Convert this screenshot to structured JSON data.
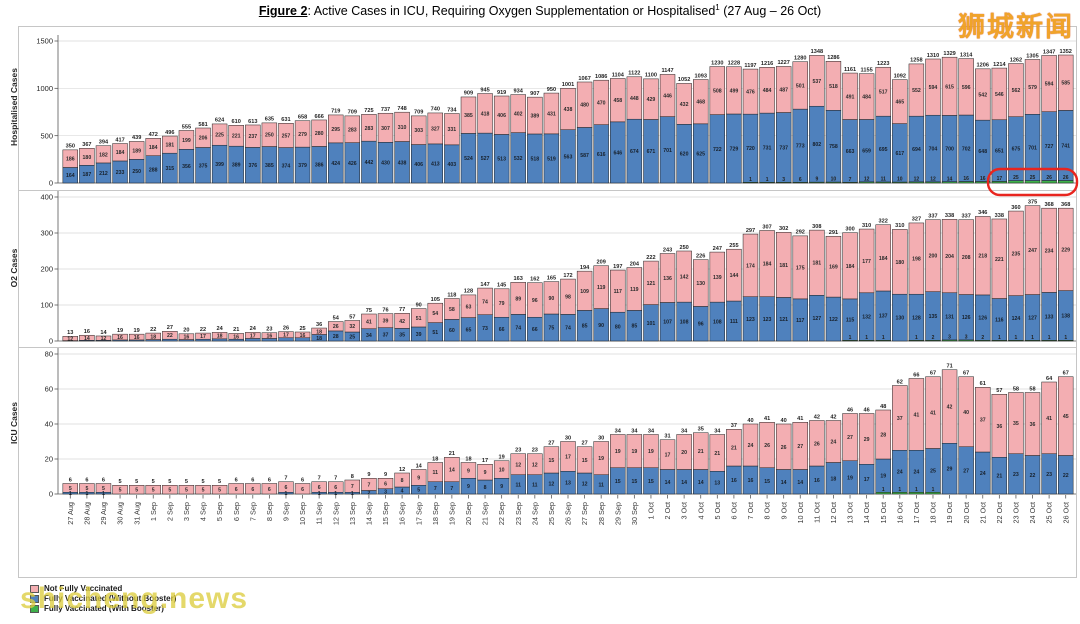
{
  "title": {
    "figure_label": "Figure 2",
    "rest": ": Active Cases in ICU, Requiring Oxygen Supplementation or Hospitalised",
    "footnote_marker": "1",
    "date_range": " (27 Aug – 26 Oct)"
  },
  "watermarks": {
    "top_right": "狮城新闻",
    "bottom_left": "shicheng.news"
  },
  "colors": {
    "not_fully_vaccinated": "#f3aeb2",
    "fully_vaccinated_without_booster": "#4f81bd",
    "fully_vaccinated_with_booster": "#3fb04a",
    "bar_border": "#1f1f1f",
    "gridline": "#d9d9d9",
    "axis": "#595959",
    "annotation_red": "#e8251f"
  },
  "legend": {
    "items": [
      {
        "label": "Not Fully Vaccinated",
        "color_key": "not_fully_vaccinated"
      },
      {
        "label": "Fully Vaccinated (Without Booster)",
        "color_key": "fully_vaccinated_without_booster"
      },
      {
        "label": "Fully Vaccinated (With Booster)",
        "color_key": "fully_vaccinated_with_booster"
      }
    ]
  },
  "annotation": {
    "shape": "red-rounded-oval",
    "circled_values": [
      17,
      25,
      25,
      26,
      26
    ],
    "meaning": "last five Fully Vaccinated (With Booster) hospitalised counts"
  },
  "dates": [
    "27 Aug",
    "28 Aug",
    "29 Aug",
    "30 Aug",
    "31 Aug",
    "1 Sep",
    "2 Sep",
    "3 Sep",
    "4 Sep",
    "5 Sep",
    "6 Sep",
    "7 Sep",
    "8 Sep",
    "9 Sep",
    "10 Sep",
    "11 Sep",
    "12 Sep",
    "13 Sep",
    "14 Sep",
    "15 Sep",
    "16 Sep",
    "17 Sep",
    "18 Sep",
    "19 Sep",
    "20 Sep",
    "21 Sep",
    "22 Sep",
    "23 Sep",
    "24 Sep",
    "25 Sep",
    "26 Sep",
    "27 Sep",
    "28 Sep",
    "29 Sep",
    "30 Sep",
    "1 Oct",
    "2 Oct",
    "3 Oct",
    "4 Oct",
    "5 Oct",
    "6 Oct",
    "7 Oct",
    "8 Oct",
    "9 Oct",
    "10 Oct",
    "11 Oct",
    "12 Oct",
    "13 Oct",
    "14 Oct",
    "15 Oct",
    "16 Oct",
    "17 Oct",
    "18 Oct",
    "19 Oct",
    "20 Oct",
    "21 Oct",
    "22 Oct",
    "23 Oct",
    "24 Oct",
    "25 Oct",
    "26 Oct"
  ],
  "chart_data": [
    {
      "type": "bar",
      "stacked": true,
      "axis_label": "Hospitalised Cases",
      "ylim": [
        0,
        1500
      ],
      "yticks": [
        0,
        500,
        1000,
        1500
      ],
      "totals": [
        350,
        367,
        394,
        417,
        439,
        472,
        496,
        555,
        581,
        624,
        610,
        613,
        635,
        631,
        658,
        666,
        719,
        709,
        725,
        737,
        748,
        709,
        740,
        734,
        909,
        945,
        919,
        934,
        907,
        950,
        1001,
        1067,
        1086,
        1104,
        1122,
        1100,
        1147,
        1052,
        1093,
        1230,
        1228,
        1197,
        1216,
        1227,
        1280,
        1348,
        1286,
        1161,
        1155,
        1223,
        1092,
        1258,
        1310,
        1329,
        1314,
        1206,
        1214,
        1262,
        1305,
        1347,
        1352
      ],
      "series": [
        {
          "name": "Fully Vaccinated (With Booster)",
          "key": "fully_vaccinated_with_booster",
          "values": [
            0,
            0,
            0,
            0,
            0,
            0,
            0,
            0,
            0,
            0,
            0,
            0,
            0,
            0,
            0,
            0,
            0,
            0,
            0,
            0,
            0,
            0,
            0,
            0,
            0,
            0,
            0,
            0,
            0,
            0,
            0,
            0,
            0,
            0,
            0,
            0,
            0,
            0,
            0,
            0,
            0,
            1,
            1,
            3,
            6,
            9,
            10,
            7,
            12,
            11,
            10,
            12,
            12,
            14,
            16,
            16,
            17,
            25,
            25,
            26,
            26
          ]
        },
        {
          "name": "Fully Vaccinated (Without Booster)",
          "key": "fully_vaccinated_without_booster",
          "values": [
            164,
            187,
            212,
            233,
            250,
            288,
            315,
            356,
            375,
            399,
            389,
            376,
            385,
            374,
            379,
            386,
            424,
            426,
            442,
            430,
            438,
            406,
            413,
            403,
            524,
            527,
            513,
            532,
            518,
            519,
            563,
            587,
            616,
            646,
            674,
            671,
            701,
            620,
            625,
            722,
            729,
            720,
            731,
            737,
            773,
            802,
            758,
            663,
            659,
            695,
            617,
            694,
            704,
            700,
            702,
            648,
            651,
            675,
            701,
            727,
            741
          ]
        },
        {
          "name": "Not Fully Vaccinated",
          "key": "not_fully_vaccinated",
          "values": [
            186,
            180,
            182,
            184,
            189,
            184,
            181,
            199,
            206,
            225,
            221,
            237,
            250,
            257,
            279,
            280,
            295,
            283,
            283,
            307,
            310,
            303,
            327,
            331,
            385,
            418,
            406,
            402,
            389,
            431,
            438,
            480,
            470,
            458,
            448,
            429,
            446,
            432,
            468,
            508,
            499,
            476,
            484,
            487,
            501,
            537,
            518,
            491,
            484,
            517,
            465,
            552,
            594,
            615,
            596,
            542,
            546,
            562,
            579,
            594,
            585
          ]
        }
      ]
    },
    {
      "type": "bar",
      "stacked": true,
      "axis_label": "O2 Cases",
      "ylim": [
        0,
        400
      ],
      "yticks": [
        0,
        100,
        200,
        300,
        400
      ],
      "totals": [
        13,
        16,
        14,
        19,
        19,
        22,
        27,
        20,
        22,
        24,
        21,
        24,
        23,
        26,
        25,
        36,
        54,
        57,
        75,
        76,
        77,
        90,
        105,
        118,
        128,
        147,
        145,
        163,
        162,
        165,
        172,
        194,
        209,
        197,
        204,
        222,
        243,
        250,
        226,
        247,
        255,
        297,
        307,
        302,
        292,
        308,
        291,
        300,
        310,
        322,
        310,
        327,
        337,
        338,
        337,
        346,
        338,
        360,
        375,
        368,
        368
      ],
      "series": [
        {
          "name": "Fully Vaccinated (With Booster)",
          "key": "fully_vaccinated_with_booster",
          "values": [
            0,
            0,
            0,
            0,
            0,
            0,
            0,
            0,
            0,
            0,
            0,
            0,
            0,
            0,
            0,
            0,
            0,
            0,
            0,
            0,
            0,
            0,
            0,
            0,
            0,
            0,
            0,
            0,
            0,
            0,
            0,
            0,
            0,
            0,
            0,
            0,
            0,
            0,
            0,
            0,
            0,
            0,
            0,
            0,
            0,
            0,
            0,
            1,
            1,
            1,
            0,
            1,
            2,
            3,
            3,
            2,
            1,
            1,
            1,
            1,
            1
          ]
        },
        {
          "name": "Fully Vaccinated (Without Booster)",
          "key": "fully_vaccinated_without_booster",
          "values": [
            1,
            2,
            2,
            3,
            3,
            4,
            5,
            4,
            5,
            6,
            5,
            7,
            7,
            9,
            9,
            18,
            28,
            25,
            34,
            37,
            35,
            39,
            51,
            60,
            65,
            73,
            66,
            74,
            66,
            75,
            74,
            85,
            90,
            80,
            85,
            101,
            107,
            108,
            96,
            108,
            111,
            123,
            123,
            121,
            117,
            127,
            122,
            115,
            132,
            137,
            130,
            128,
            135,
            131,
            126,
            126,
            116,
            124,
            127,
            133,
            138
          ]
        },
        {
          "name": "Not Fully Vaccinated",
          "key": "not_fully_vaccinated",
          "values": [
            12,
            14,
            12,
            16,
            16,
            18,
            22,
            16,
            17,
            18,
            16,
            17,
            16,
            17,
            16,
            18,
            26,
            32,
            41,
            39,
            42,
            51,
            54,
            58,
            63,
            74,
            79,
            89,
            96,
            90,
            98,
            109,
            119,
            117,
            119,
            121,
            136,
            142,
            130,
            139,
            144,
            174,
            184,
            181,
            175,
            181,
            169,
            184,
            177,
            184,
            180,
            198,
            200,
            204,
            208,
            218,
            221,
            235,
            247,
            234,
            229
          ]
        }
      ]
    },
    {
      "type": "bar",
      "stacked": true,
      "axis_label": "ICU Cases",
      "ylim": [
        0,
        80
      ],
      "yticks": [
        0,
        20,
        40,
        60,
        80
      ],
      "totals": [
        6,
        6,
        6,
        5,
        5,
        5,
        5,
        5,
        5,
        5,
        6,
        6,
        6,
        7,
        6,
        7,
        7,
        8,
        9,
        9,
        12,
        14,
        18,
        21,
        18,
        17,
        19,
        23,
        23,
        27,
        30,
        27,
        30,
        34,
        34,
        34,
        31,
        34,
        35,
        34,
        37,
        40,
        41,
        40,
        41,
        42,
        42,
        46,
        46,
        48,
        62,
        66,
        67,
        71,
        67,
        61,
        57,
        58,
        58,
        64,
        67
      ],
      "series": [
        {
          "name": "Fully Vaccinated (With Booster)",
          "key": "fully_vaccinated_with_booster",
          "values": [
            0,
            0,
            0,
            0,
            0,
            0,
            0,
            0,
            0,
            0,
            0,
            0,
            0,
            0,
            0,
            0,
            0,
            0,
            0,
            0,
            0,
            0,
            0,
            0,
            0,
            0,
            0,
            0,
            0,
            0,
            0,
            0,
            0,
            0,
            0,
            0,
            0,
            0,
            0,
            0,
            0,
            0,
            0,
            0,
            0,
            0,
            0,
            0,
            0,
            1,
            1,
            1,
            1,
            0,
            0,
            0,
            0,
            0,
            0,
            0,
            0
          ]
        },
        {
          "name": "Fully Vaccinated (Without Booster)",
          "key": "fully_vaccinated_without_booster",
          "values": [
            1,
            1,
            1,
            0,
            0,
            0,
            0,
            0,
            0,
            0,
            0,
            0,
            0,
            1,
            0,
            1,
            1,
            1,
            2,
            3,
            4,
            5,
            7,
            7,
            9,
            8,
            9,
            11,
            11,
            12,
            13,
            12,
            11,
            15,
            15,
            15,
            14,
            14,
            14,
            13,
            16,
            16,
            15,
            14,
            14,
            16,
            18,
            19,
            17,
            19,
            24,
            24,
            25,
            29,
            27,
            24,
            21,
            23,
            22,
            23,
            22
          ]
        },
        {
          "name": "Not Fully Vaccinated",
          "key": "not_fully_vaccinated",
          "values": [
            5,
            5,
            5,
            5,
            5,
            5,
            5,
            5,
            5,
            5,
            6,
            6,
            6,
            6,
            6,
            6,
            6,
            7,
            7,
            6,
            8,
            9,
            11,
            14,
            9,
            9,
            10,
            12,
            12,
            15,
            17,
            15,
            19,
            19,
            19,
            19,
            17,
            20,
            21,
            21,
            21,
            24,
            26,
            26,
            27,
            26,
            24,
            27,
            29,
            28,
            37,
            41,
            41,
            42,
            40,
            37,
            36,
            35,
            36,
            41,
            45
          ]
        }
      ]
    }
  ]
}
